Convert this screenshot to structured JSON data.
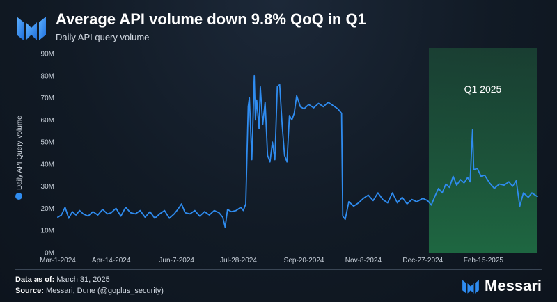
{
  "header": {
    "title": "Average API volume down 9.8% QoQ in Q1",
    "subtitle": "Daily API query volume"
  },
  "footer": {
    "data_label": "Data as of:",
    "data_value": "March 31, 2025",
    "source_label": "Source:",
    "source_value": "Messari, Dune (@goplus_security)"
  },
  "brand": {
    "name": "Messari",
    "icon": "messari-logo-icon",
    "color": "#2e8cf2"
  },
  "colors": {
    "line": "#2f8cf0",
    "highlight": "#1f6b43",
    "legend_dot": "#2f8cf0"
  },
  "chart_data": {
    "type": "line",
    "title": "Average API volume down 9.8% QoQ in Q1",
    "subtitle": "Daily API query volume",
    "ylabel": "Daily API Query Volume",
    "xlabel": "",
    "ylim": [
      0,
      90000000
    ],
    "xlim": [
      "2024-03-01",
      "2025-03-31"
    ],
    "y_ticks": [
      "0M",
      "10M",
      "20M",
      "30M",
      "40M",
      "50M",
      "60M",
      "70M",
      "80M",
      "90M"
    ],
    "y_tick_values": [
      0,
      10000000,
      20000000,
      30000000,
      40000000,
      50000000,
      60000000,
      70000000,
      80000000,
      90000000
    ],
    "x_ticks": [
      "Mar-1-2024",
      "Apr-14-2024",
      "Jun-7-2024",
      "Jul-28-2024",
      "Sep-20-2024",
      "Nov-8-2024",
      "Dec-27-2024",
      "Feb-15-2025"
    ],
    "x_tick_dates": [
      "2024-03-01",
      "2024-04-14",
      "2024-06-07",
      "2024-07-28",
      "2024-09-20",
      "2024-11-08",
      "2024-12-27",
      "2025-02-15"
    ],
    "grid": false,
    "legend": "left",
    "series": [
      {
        "name": "Daily API Query Volume",
        "points": [
          [
            "2024-03-01",
            16000000
          ],
          [
            "2024-03-04",
            17000000
          ],
          [
            "2024-03-07",
            20500000
          ],
          [
            "2024-03-10",
            15500000
          ],
          [
            "2024-03-13",
            18500000
          ],
          [
            "2024-03-16",
            17000000
          ],
          [
            "2024-03-19",
            19000000
          ],
          [
            "2024-03-22",
            17500000
          ],
          [
            "2024-03-26",
            16500000
          ],
          [
            "2024-03-30",
            18500000
          ],
          [
            "2024-04-03",
            17000000
          ],
          [
            "2024-04-07",
            19500000
          ],
          [
            "2024-04-11",
            17500000
          ],
          [
            "2024-04-14",
            18000000
          ],
          [
            "2024-04-18",
            20000000
          ],
          [
            "2024-04-22",
            16500000
          ],
          [
            "2024-04-26",
            20500000
          ],
          [
            "2024-04-30",
            18000000
          ],
          [
            "2024-05-04",
            17500000
          ],
          [
            "2024-05-08",
            19000000
          ],
          [
            "2024-05-12",
            16000000
          ],
          [
            "2024-05-16",
            18500000
          ],
          [
            "2024-05-20",
            15500000
          ],
          [
            "2024-05-24",
            17500000
          ],
          [
            "2024-05-28",
            19000000
          ],
          [
            "2024-06-01",
            15500000
          ],
          [
            "2024-06-05",
            17500000
          ],
          [
            "2024-06-08",
            19500000
          ],
          [
            "2024-06-11",
            22000000
          ],
          [
            "2024-06-14",
            18000000
          ],
          [
            "2024-06-18",
            17500000
          ],
          [
            "2024-06-22",
            19000000
          ],
          [
            "2024-06-26",
            16500000
          ],
          [
            "2024-06-30",
            18500000
          ],
          [
            "2024-07-04",
            17000000
          ],
          [
            "2024-07-08",
            19000000
          ],
          [
            "2024-07-12",
            18000000
          ],
          [
            "2024-07-15",
            16000000
          ],
          [
            "2024-07-17",
            11500000
          ],
          [
            "2024-07-19",
            19500000
          ],
          [
            "2024-07-22",
            18500000
          ],
          [
            "2024-07-26",
            19000000
          ],
          [
            "2024-07-30",
            20500000
          ],
          [
            "2024-08-01",
            19000000
          ],
          [
            "2024-08-03",
            22000000
          ],
          [
            "2024-08-05",
            66000000
          ],
          [
            "2024-08-06",
            70000000
          ],
          [
            "2024-08-08",
            42000000
          ],
          [
            "2024-08-10",
            80000000
          ],
          [
            "2024-08-11",
            60000000
          ],
          [
            "2024-08-12",
            69000000
          ],
          [
            "2024-08-14",
            56000000
          ],
          [
            "2024-08-15",
            75000000
          ],
          [
            "2024-08-17",
            58000000
          ],
          [
            "2024-08-19",
            68000000
          ],
          [
            "2024-08-21",
            44000000
          ],
          [
            "2024-08-23",
            41000000
          ],
          [
            "2024-08-25",
            50000000
          ],
          [
            "2024-08-27",
            42000000
          ],
          [
            "2024-08-29",
            75000000
          ],
          [
            "2024-08-31",
            76000000
          ],
          [
            "2024-09-02",
            58000000
          ],
          [
            "2024-09-04",
            44000000
          ],
          [
            "2024-09-06",
            41000000
          ],
          [
            "2024-09-08",
            62000000
          ],
          [
            "2024-09-10",
            60000000
          ],
          [
            "2024-09-12",
            63000000
          ],
          [
            "2024-09-14",
            71000000
          ],
          [
            "2024-09-17",
            66000000
          ],
          [
            "2024-09-20",
            65000000
          ],
          [
            "2024-09-24",
            67000000
          ],
          [
            "2024-09-28",
            65500000
          ],
          [
            "2024-10-02",
            67500000
          ],
          [
            "2024-10-06",
            66000000
          ],
          [
            "2024-10-10",
            68000000
          ],
          [
            "2024-10-14",
            66500000
          ],
          [
            "2024-10-18",
            65000000
          ],
          [
            "2024-10-21",
            63000000
          ],
          [
            "2024-10-22",
            16500000
          ],
          [
            "2024-10-24",
            15000000
          ],
          [
            "2024-10-27",
            23000000
          ],
          [
            "2024-10-31",
            21000000
          ],
          [
            "2024-11-04",
            22500000
          ],
          [
            "2024-11-08",
            24500000
          ],
          [
            "2024-11-12",
            26000000
          ],
          [
            "2024-11-16",
            23500000
          ],
          [
            "2024-11-20",
            27000000
          ],
          [
            "2024-11-24",
            24000000
          ],
          [
            "2024-11-28",
            22500000
          ],
          [
            "2024-12-02",
            27000000
          ],
          [
            "2024-12-06",
            22500000
          ],
          [
            "2024-12-10",
            25000000
          ],
          [
            "2024-12-14",
            22000000
          ],
          [
            "2024-12-18",
            24000000
          ],
          [
            "2024-12-22",
            23000000
          ],
          [
            "2024-12-27",
            24500000
          ],
          [
            "2024-12-31",
            23500000
          ],
          [
            "2025-01-03",
            21500000
          ],
          [
            "2025-01-06",
            25500000
          ],
          [
            "2025-01-09",
            29000000
          ],
          [
            "2025-01-12",
            27000000
          ],
          [
            "2025-01-15",
            31000000
          ],
          [
            "2025-01-18",
            29500000
          ],
          [
            "2025-01-21",
            34500000
          ],
          [
            "2025-01-24",
            30500000
          ],
          [
            "2025-01-27",
            33000000
          ],
          [
            "2025-01-30",
            31500000
          ],
          [
            "2025-02-02",
            34000000
          ],
          [
            "2025-02-04",
            32000000
          ],
          [
            "2025-02-06",
            55500000
          ],
          [
            "2025-02-07",
            37500000
          ],
          [
            "2025-02-10",
            38000000
          ],
          [
            "2025-02-13",
            34500000
          ],
          [
            "2025-02-16",
            35000000
          ],
          [
            "2025-02-20",
            31500000
          ],
          [
            "2025-02-24",
            29000000
          ],
          [
            "2025-02-28",
            31000000
          ],
          [
            "2025-03-04",
            30500000
          ],
          [
            "2025-03-08",
            32000000
          ],
          [
            "2025-03-11",
            30000000
          ],
          [
            "2025-03-14",
            32500000
          ],
          [
            "2025-03-17",
            21000000
          ],
          [
            "2025-03-20",
            27000000
          ],
          [
            "2025-03-24",
            25000000
          ],
          [
            "2025-03-27",
            27000000
          ],
          [
            "2025-03-31",
            25500000
          ]
        ]
      }
    ],
    "annotations": [
      {
        "label": "Q1 2025",
        "start": "2025-01-01",
        "end": "2025-03-31",
        "type": "shaded-region"
      }
    ]
  }
}
